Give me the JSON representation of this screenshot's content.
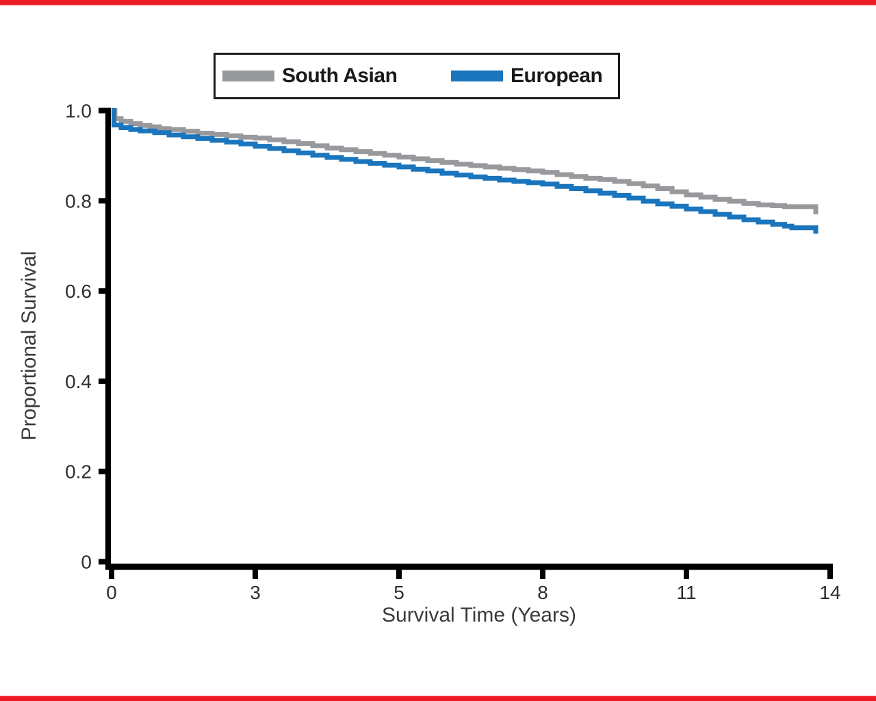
{
  "page": {
    "background": "#FFFFFF",
    "top_border_color": "#ED1C24",
    "bottom_border_color": "#ED1C24"
  },
  "chart_data": {
    "type": "line",
    "subtype": "kaplan_meier_step",
    "title": "",
    "xlabel": "Survival Time (Years)",
    "ylabel": "Proportional Survival",
    "x_tick_labels": [
      "0",
      "3",
      "5",
      "8",
      "11",
      "14"
    ],
    "x_tick_values": [
      0,
      3,
      5,
      8,
      11,
      14
    ],
    "x_ticks_evenly_spaced": true,
    "y_tick_labels": [
      "1.0",
      "0.8",
      "0.6",
      "0.4",
      "0.2",
      "0"
    ],
    "y_tick_values": [
      1.0,
      0.8,
      0.6,
      0.4,
      0.2,
      0
    ],
    "xlim": [
      0,
      14
    ],
    "ylim": [
      0,
      1.0
    ],
    "grid": false,
    "axis_color": "#000000",
    "tick_label_color": "#2e2e2e",
    "axis_title_color": "#3a3a3a",
    "legend": {
      "position": "top-center",
      "border_color": "#1a1a1a"
    },
    "series": [
      {
        "name": "South Asian",
        "color": "#97999C",
        "points": [
          [
            0,
            1.0
          ],
          [
            0.07,
            0.982
          ],
          [
            0.2,
            0.976
          ],
          [
            0.4,
            0.971
          ],
          [
            0.6,
            0.967
          ],
          [
            0.8,
            0.964
          ],
          [
            1.0,
            0.96
          ],
          [
            1.2,
            0.958
          ],
          [
            1.5,
            0.954
          ],
          [
            1.8,
            0.95
          ],
          [
            2.1,
            0.947
          ],
          [
            2.4,
            0.944
          ],
          [
            2.7,
            0.941
          ],
          [
            3.0,
            0.939
          ],
          [
            3.2,
            0.935
          ],
          [
            3.4,
            0.931
          ],
          [
            3.6,
            0.927
          ],
          [
            3.8,
            0.922
          ],
          [
            4.0,
            0.917
          ],
          [
            4.2,
            0.913
          ],
          [
            4.4,
            0.909
          ],
          [
            4.6,
            0.905
          ],
          [
            4.8,
            0.901
          ],
          [
            5.0,
            0.897
          ],
          [
            5.3,
            0.893
          ],
          [
            5.6,
            0.889
          ],
          [
            5.9,
            0.885
          ],
          [
            6.2,
            0.881
          ],
          [
            6.5,
            0.878
          ],
          [
            6.8,
            0.875
          ],
          [
            7.1,
            0.872
          ],
          [
            7.4,
            0.869
          ],
          [
            7.7,
            0.866
          ],
          [
            8.0,
            0.863
          ],
          [
            8.3,
            0.858
          ],
          [
            8.6,
            0.854
          ],
          [
            8.9,
            0.85
          ],
          [
            9.2,
            0.847
          ],
          [
            9.5,
            0.843
          ],
          [
            9.8,
            0.838
          ],
          [
            10.1,
            0.833
          ],
          [
            10.4,
            0.827
          ],
          [
            10.7,
            0.82
          ],
          [
            11.0,
            0.813
          ],
          [
            11.3,
            0.808
          ],
          [
            11.6,
            0.803
          ],
          [
            11.9,
            0.799
          ],
          [
            12.2,
            0.794
          ],
          [
            12.5,
            0.791
          ],
          [
            12.8,
            0.789
          ],
          [
            13.05,
            0.787
          ],
          [
            13.65,
            0.787
          ],
          [
            13.7,
            0.77
          ]
        ]
      },
      {
        "name": "European",
        "color": "#1B75BC",
        "points": [
          [
            0,
            1.0
          ],
          [
            0.05,
            0.968
          ],
          [
            0.2,
            0.962
          ],
          [
            0.4,
            0.958
          ],
          [
            0.6,
            0.955
          ],
          [
            0.9,
            0.951
          ],
          [
            1.2,
            0.946
          ],
          [
            1.5,
            0.942
          ],
          [
            1.8,
            0.938
          ],
          [
            2.1,
            0.934
          ],
          [
            2.4,
            0.93
          ],
          [
            2.7,
            0.926
          ],
          [
            3.0,
            0.921
          ],
          [
            3.2,
            0.916
          ],
          [
            3.4,
            0.911
          ],
          [
            3.6,
            0.906
          ],
          [
            3.8,
            0.901
          ],
          [
            4.0,
            0.896
          ],
          [
            4.2,
            0.892
          ],
          [
            4.4,
            0.887
          ],
          [
            4.6,
            0.883
          ],
          [
            4.8,
            0.879
          ],
          [
            5.0,
            0.875
          ],
          [
            5.3,
            0.87
          ],
          [
            5.6,
            0.866
          ],
          [
            5.9,
            0.861
          ],
          [
            6.2,
            0.857
          ],
          [
            6.5,
            0.853
          ],
          [
            6.8,
            0.85
          ],
          [
            7.1,
            0.846
          ],
          [
            7.4,
            0.843
          ],
          [
            7.7,
            0.84
          ],
          [
            8.0,
            0.837
          ],
          [
            8.3,
            0.832
          ],
          [
            8.6,
            0.827
          ],
          [
            8.9,
            0.822
          ],
          [
            9.2,
            0.817
          ],
          [
            9.5,
            0.812
          ],
          [
            9.8,
            0.806
          ],
          [
            10.1,
            0.799
          ],
          [
            10.4,
            0.793
          ],
          [
            10.7,
            0.788
          ],
          [
            11.0,
            0.782
          ],
          [
            11.3,
            0.776
          ],
          [
            11.6,
            0.77
          ],
          [
            11.9,
            0.764
          ],
          [
            12.2,
            0.758
          ],
          [
            12.5,
            0.753
          ],
          [
            12.8,
            0.748
          ],
          [
            13.05,
            0.744
          ],
          [
            13.2,
            0.74
          ],
          [
            13.65,
            0.74
          ],
          [
            13.7,
            0.727
          ]
        ]
      }
    ]
  }
}
